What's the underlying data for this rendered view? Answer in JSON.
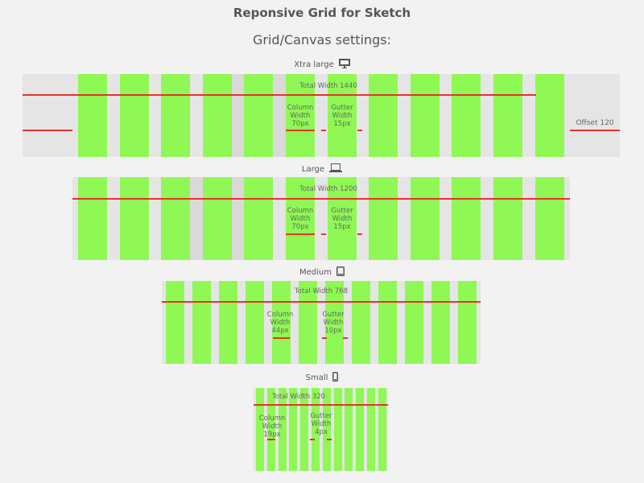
{
  "title": "Reponsive Grid for Sketch",
  "subtitle": "Grid/Canvas settings:",
  "colors": {
    "background": "#f2f2f2",
    "canvas": "#e5e5e5",
    "column": "#8ff854",
    "measure_line": "#e8332a",
    "text": "#555555"
  },
  "breakpoints": [
    {
      "name": "Xtra large",
      "icon": "desktop-icon",
      "total_width_label": "Total Width 1440",
      "column_label": [
        "Column",
        "Width",
        "70px"
      ],
      "gutter_label": [
        "Gutter",
        "Width",
        "15px"
      ],
      "offset_label": "Offset 120",
      "columns": 12
    },
    {
      "name": "Large",
      "icon": "laptop-icon",
      "total_width_label": "Total Width 1200",
      "column_label": [
        "Column",
        "Width",
        "70px"
      ],
      "gutter_label": [
        "Gutter",
        "Width",
        "15px"
      ],
      "columns": 12
    },
    {
      "name": "Medium",
      "icon": "tablet-icon",
      "total_width_label": "Total Width 768",
      "column_label": [
        "Column",
        "Width",
        "44px"
      ],
      "gutter_label": [
        "Gutter",
        "Width",
        "10px"
      ],
      "columns": 12
    },
    {
      "name": "Small",
      "icon": "phone-icon",
      "total_width_label": "Total Width 320",
      "column_label": [
        "Column",
        "Width",
        "19px"
      ],
      "gutter_label": [
        "Gutter",
        "Width",
        "4px"
      ],
      "columns": 12
    }
  ]
}
